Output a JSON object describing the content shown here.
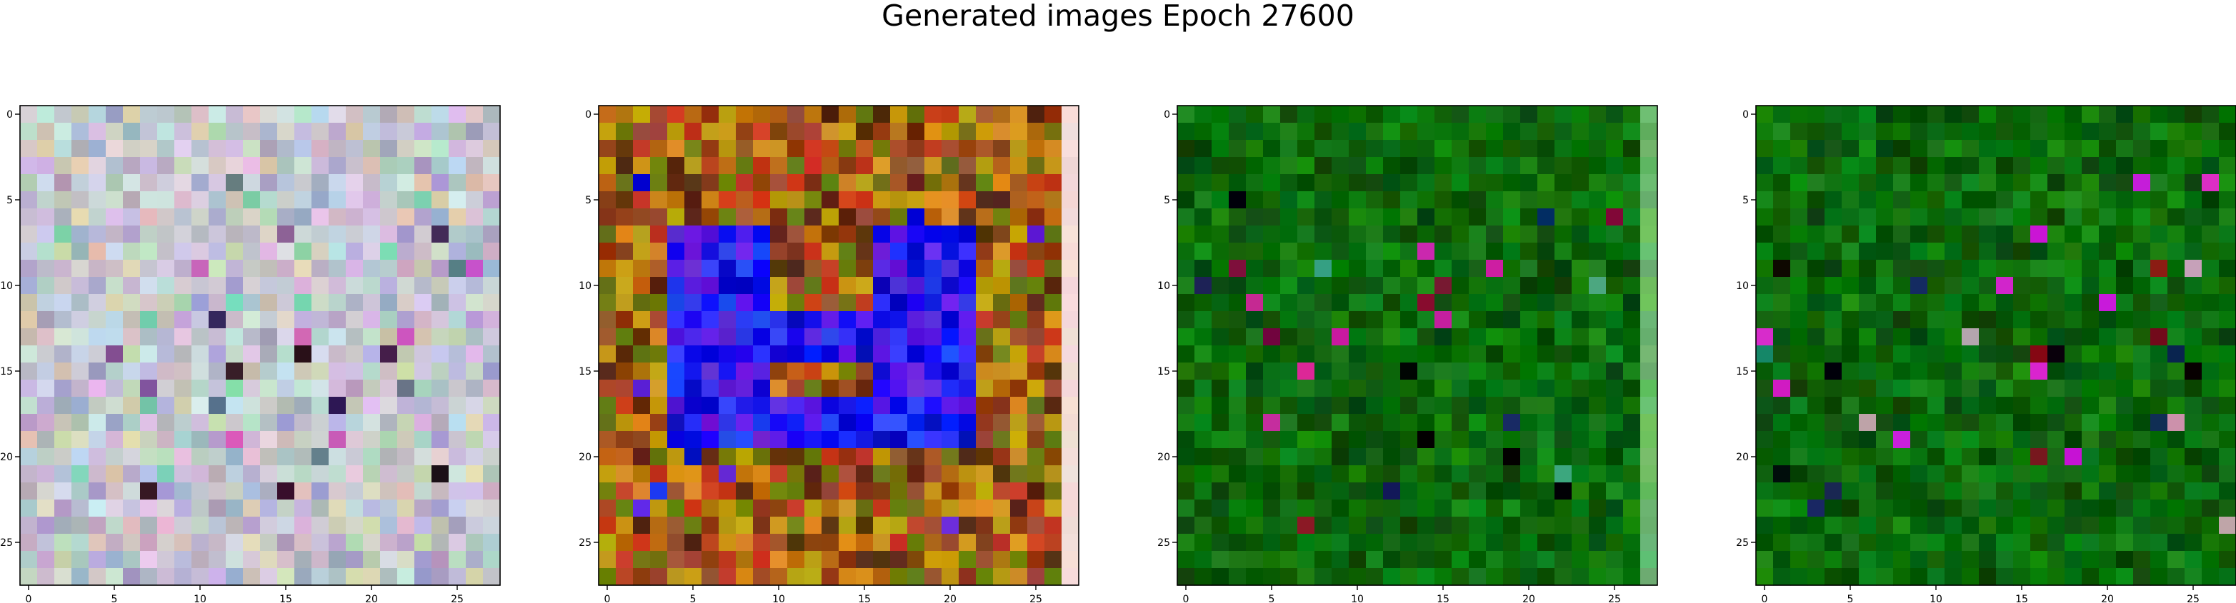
{
  "figure": {
    "suptitle": "Generated images Epoch 27600"
  },
  "chart_data": [
    {
      "type": "heatmap",
      "name": "generated-image-1",
      "grid_size": [
        28,
        28
      ],
      "xlim": [
        -0.5,
        27.5
      ],
      "ylim": [
        27.5,
        -0.5
      ],
      "xticks": [
        0,
        5,
        10,
        15,
        20,
        25
      ],
      "yticks": [
        0,
        5,
        10,
        15,
        20,
        25
      ],
      "palette": "pastel",
      "palette_colors": [
        "#c9c3d8",
        "#b9c8c0",
        "#d8c9df",
        "#c5d6cf",
        "#a9a7c4",
        "#d6cdb8",
        "#bdb3cf",
        "#cbdbe0"
      ],
      "accent_colors": [
        "#3a2450",
        "#8a5aa0",
        "#5a7a86",
        "#80d0b0",
        "#d060c0",
        "#2a1a20"
      ]
    },
    {
      "type": "heatmap",
      "name": "generated-image-2",
      "grid_size": [
        28,
        28
      ],
      "xlim": [
        -0.5,
        27.5
      ],
      "ylim": [
        27.5,
        -0.5
      ],
      "xticks": [
        0,
        5,
        10,
        15,
        20,
        25
      ],
      "yticks": [
        0,
        5,
        10,
        15,
        20,
        25
      ],
      "palette": "warm-with-blue-digit",
      "palette_colors": [
        "#b86a10",
        "#8a3a10",
        "#c83a20",
        "#6a7a10",
        "#d89020",
        "#5a2a10",
        "#a05030",
        "#c0a010"
      ],
      "accent_colors": [
        "#1010f0",
        "#2a40f8",
        "#6020e0",
        "#0000c8"
      ]
    },
    {
      "type": "heatmap",
      "name": "generated-image-3",
      "grid_size": [
        28,
        28
      ],
      "xlim": [
        -0.5,
        27.5
      ],
      "ylim": [
        27.5,
        -0.5
      ],
      "xticks": [
        0,
        5,
        10,
        15,
        20,
        25
      ],
      "yticks": [
        0,
        5,
        10,
        15,
        20,
        25
      ],
      "palette": "green",
      "palette_colors": [
        "#0a6a0a",
        "#086008",
        "#107a10",
        "#0a5a0a",
        "#158515",
        "#064a06",
        "#0c700c"
      ],
      "accent_colors": [
        "#000000",
        "#10205a",
        "#d020a0",
        "#40a080",
        "#801030"
      ]
    },
    {
      "type": "heatmap",
      "name": "generated-image-4",
      "grid_size": [
        28,
        28
      ],
      "xlim": [
        -0.5,
        27.5
      ],
      "ylim": [
        27.5,
        -0.5
      ],
      "xticks": [
        0,
        5,
        10,
        15,
        20,
        25
      ],
      "yticks": [
        0,
        5,
        10,
        15,
        20,
        25
      ],
      "palette": "green",
      "palette_colors": [
        "#0a6a0a",
        "#086008",
        "#107a10",
        "#0a5a0a",
        "#158515",
        "#064a06",
        "#0c700c"
      ],
      "accent_colors": [
        "#000000",
        "#c0a0b0",
        "#d020d0",
        "#801020",
        "#10205a",
        "#208060"
      ]
    }
  ]
}
